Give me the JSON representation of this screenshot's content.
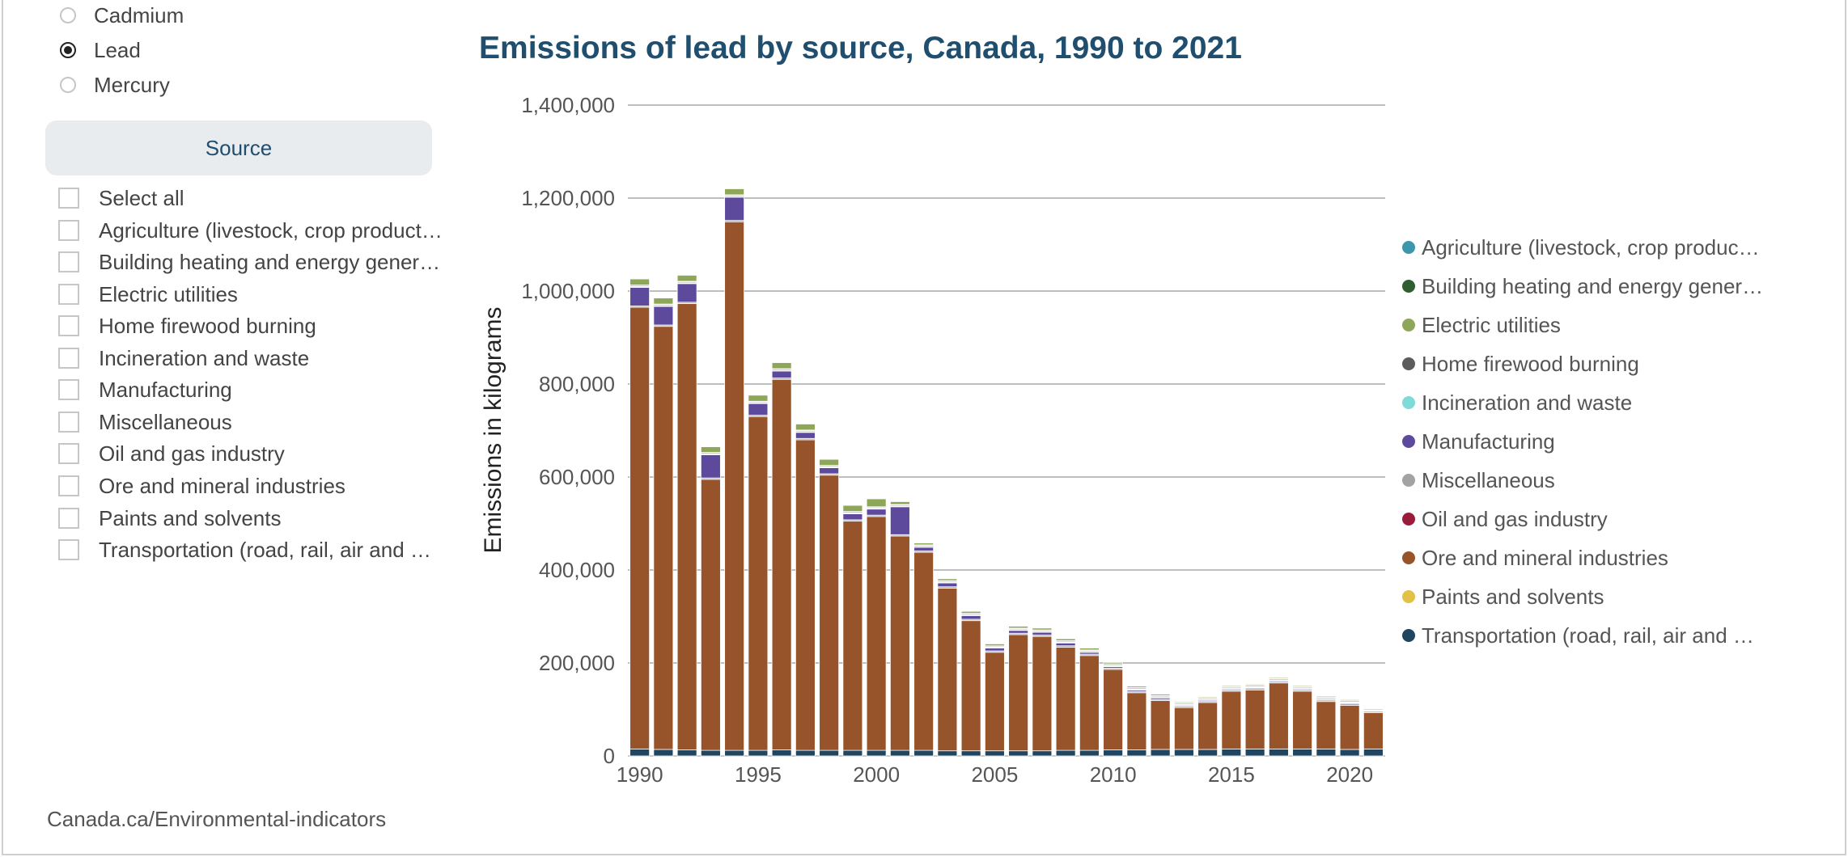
{
  "filters": {
    "pollutant_options": [
      {
        "label": "Cadmium",
        "selected": false
      },
      {
        "label": "Lead",
        "selected": true
      },
      {
        "label": "Mercury",
        "selected": false
      }
    ],
    "source_button_label": "Source",
    "source_options": [
      "Select all",
      "Agriculture (livestock, crop product…",
      "Building heating and energy gener…",
      "Electric utilities",
      "Home firewood burning",
      "Incineration and waste",
      "Manufacturing",
      "Miscellaneous",
      "Oil and gas industry",
      "Ore and mineral industries",
      "Paints and solvents",
      "Transportation (road, rail, air and …"
    ]
  },
  "footer": {
    "link_text": "Canada.ca/Environmental-indicators"
  },
  "legend": {
    "items": [
      {
        "label": "Agriculture (livestock, crop produc…",
        "color": "#3c97ad"
      },
      {
        "label": "Building heating and energy gener…",
        "color": "#2f5f2f"
      },
      {
        "label": "Electric utilities",
        "color": "#8ea657"
      },
      {
        "label": "Home firewood burning",
        "color": "#5c5c5c"
      },
      {
        "label": "Incineration and waste",
        "color": "#7fdbd9"
      },
      {
        "label": "Manufacturing",
        "color": "#5e4a9c"
      },
      {
        "label": "Miscellaneous",
        "color": "#a3a3a3"
      },
      {
        "label": "Oil and gas industry",
        "color": "#9b1c3a"
      },
      {
        "label": "Ore and mineral industries",
        "color": "#97542b"
      },
      {
        "label": "Paints and solvents",
        "color": "#e3c046"
      },
      {
        "label": "Transportation (road, rail, air and …",
        "color": "#1f4560"
      }
    ]
  },
  "chart_data": {
    "type": "bar",
    "stacked": true,
    "title": "Emissions of lead by source, Canada, 1990 to 2021",
    "xlabel": "",
    "ylabel": "Emissions in kilograms",
    "ylim": [
      0,
      1400000
    ],
    "yticks": [
      0,
      200000,
      400000,
      600000,
      800000,
      1000000,
      1200000,
      1400000
    ],
    "ytick_labels": [
      "0",
      "200,000",
      "400,000",
      "600,000",
      "800,000",
      "1,000,000",
      "1,200,000",
      "1,400,000"
    ],
    "xtick_labels": [
      "1990",
      "1995",
      "2000",
      "2005",
      "2010",
      "2015",
      "2020"
    ],
    "xtick_years": [
      1990,
      1995,
      2000,
      2005,
      2010,
      2015,
      2020
    ],
    "grid": true,
    "legend_position": "right",
    "categories": [
      1990,
      1991,
      1992,
      1993,
      1994,
      1995,
      1996,
      1997,
      1998,
      1999,
      2000,
      2001,
      2002,
      2003,
      2004,
      2005,
      2006,
      2007,
      2008,
      2009,
      2010,
      2011,
      2012,
      2013,
      2014,
      2015,
      2016,
      2017,
      2018,
      2019,
      2020,
      2021
    ],
    "series": [
      {
        "name": "Transportation (road, rail, air and …",
        "color": "#1f4560",
        "values": [
          15000,
          14000,
          13000,
          12000,
          12000,
          12000,
          13000,
          12000,
          12000,
          12000,
          12000,
          12000,
          12000,
          11000,
          11000,
          11000,
          11000,
          11000,
          12000,
          12000,
          13000,
          13000,
          14000,
          14000,
          14000,
          15000,
          15000,
          15000,
          15000,
          15000,
          14000,
          15000
        ]
      },
      {
        "name": "Paints and solvents",
        "color": "#e3c046",
        "values": [
          0,
          0,
          0,
          0,
          0,
          0,
          0,
          0,
          0,
          0,
          0,
          0,
          0,
          0,
          0,
          0,
          0,
          0,
          0,
          0,
          0,
          0,
          0,
          0,
          0,
          0,
          0,
          0,
          0,
          0,
          0,
          0
        ]
      },
      {
        "name": "Ore and mineral industries",
        "color": "#97542b",
        "values": [
          950000,
          910000,
          960000,
          583000,
          1137000,
          718000,
          797000,
          668000,
          592000,
          493000,
          503000,
          461000,
          426000,
          350000,
          280000,
          212000,
          250000,
          246000,
          222000,
          204000,
          173000,
          123000,
          105000,
          90000,
          101000,
          124000,
          127000,
          142000,
          124000,
          102000,
          95000,
          78000
        ]
      },
      {
        "name": "Miscellaneous",
        "color": "#a3a3a3",
        "values": [
          3000,
          3000,
          3000,
          3000,
          3000,
          3000,
          3000,
          3000,
          3000,
          3000,
          3000,
          3000,
          3000,
          3000,
          3000,
          3000,
          3000,
          3000,
          3000,
          3000,
          3000,
          3000,
          3000,
          3000,
          3000,
          3000,
          3000,
          3000,
          3000,
          3000,
          3000,
          3000
        ]
      },
      {
        "name": "Manufacturing",
        "color": "#5e4a9c",
        "values": [
          40000,
          40000,
          40000,
          50000,
          50000,
          25000,
          15000,
          13000,
          13000,
          13000,
          13000,
          60000,
          8000,
          8000,
          8000,
          6000,
          6000,
          6000,
          6000,
          4000,
          3000,
          3000,
          3000,
          2000,
          2000,
          2000,
          2000,
          2000,
          2000,
          2000,
          2000,
          1000
        ]
      },
      {
        "name": "Oil and gas industry",
        "color": "#9b1c3a",
        "values": [
          1000,
          1000,
          1000,
          1000,
          1000,
          1000,
          1000,
          1000,
          1000,
          1000,
          1000,
          1000,
          1000,
          1000,
          1000,
          1000,
          1000,
          1000,
          1000,
          1000,
          1000,
          1000,
          1000,
          1000,
          1000,
          1000,
          1000,
          1000,
          1000,
          1000,
          1000,
          1000
        ]
      },
      {
        "name": "Incineration and waste",
        "color": "#7fdbd9",
        "values": [
          1000,
          1000,
          1000,
          1000,
          1000,
          1000,
          1000,
          1000,
          1000,
          1000,
          1000,
          1000,
          1000,
          1000,
          1000,
          1000,
          1000,
          1000,
          1000,
          1000,
          1000,
          1000,
          1000,
          1000,
          1000,
          1000,
          1000,
          1000,
          1000,
          1000,
          1000,
          1000
        ]
      },
      {
        "name": "Home firewood burning",
        "color": "#5c5c5c",
        "values": [
          2000,
          2000,
          2000,
          2000,
          2000,
          2000,
          2000,
          2000,
          2000,
          2000,
          2000,
          2000,
          2000,
          2000,
          2000,
          2000,
          2000,
          2000,
          2000,
          2000,
          2000,
          2000,
          2000,
          2000,
          2000,
          2000,
          2000,
          2000,
          2000,
          2000,
          2000,
          2000
        ]
      },
      {
        "name": "Building heating and energy gener…",
        "color": "#2f5f2f",
        "values": [
          1000,
          1000,
          1000,
          1000,
          1000,
          1000,
          1000,
          1000,
          1000,
          1000,
          1000,
          1000,
          1000,
          1000,
          1000,
          1000,
          1000,
          1000,
          1000,
          1000,
          1000,
          1000,
          1000,
          1000,
          1000,
          1000,
          1000,
          1000,
          1000,
          1000,
          1000,
          1000
        ]
      },
      {
        "name": "Electric utilities",
        "color": "#8ea657",
        "values": [
          13000,
          13000,
          13000,
          12000,
          13000,
          13000,
          13000,
          13000,
          13000,
          13000,
          17000,
          6000,
          4000,
          4000,
          4000,
          4000,
          4000,
          4000,
          4000,
          4000,
          3000,
          3000,
          3000,
          2000,
          2000,
          2000,
          2000,
          2000,
          2000,
          2000,
          2000,
          1000
        ]
      },
      {
        "name": "Agriculture (livestock, crop produc…",
        "color": "#3c97ad",
        "values": [
          0,
          0,
          0,
          0,
          0,
          0,
          0,
          0,
          0,
          0,
          0,
          0,
          0,
          0,
          0,
          0,
          0,
          0,
          0,
          0,
          0,
          0,
          0,
          0,
          0,
          0,
          0,
          0,
          0,
          0,
          0,
          0
        ]
      }
    ]
  }
}
